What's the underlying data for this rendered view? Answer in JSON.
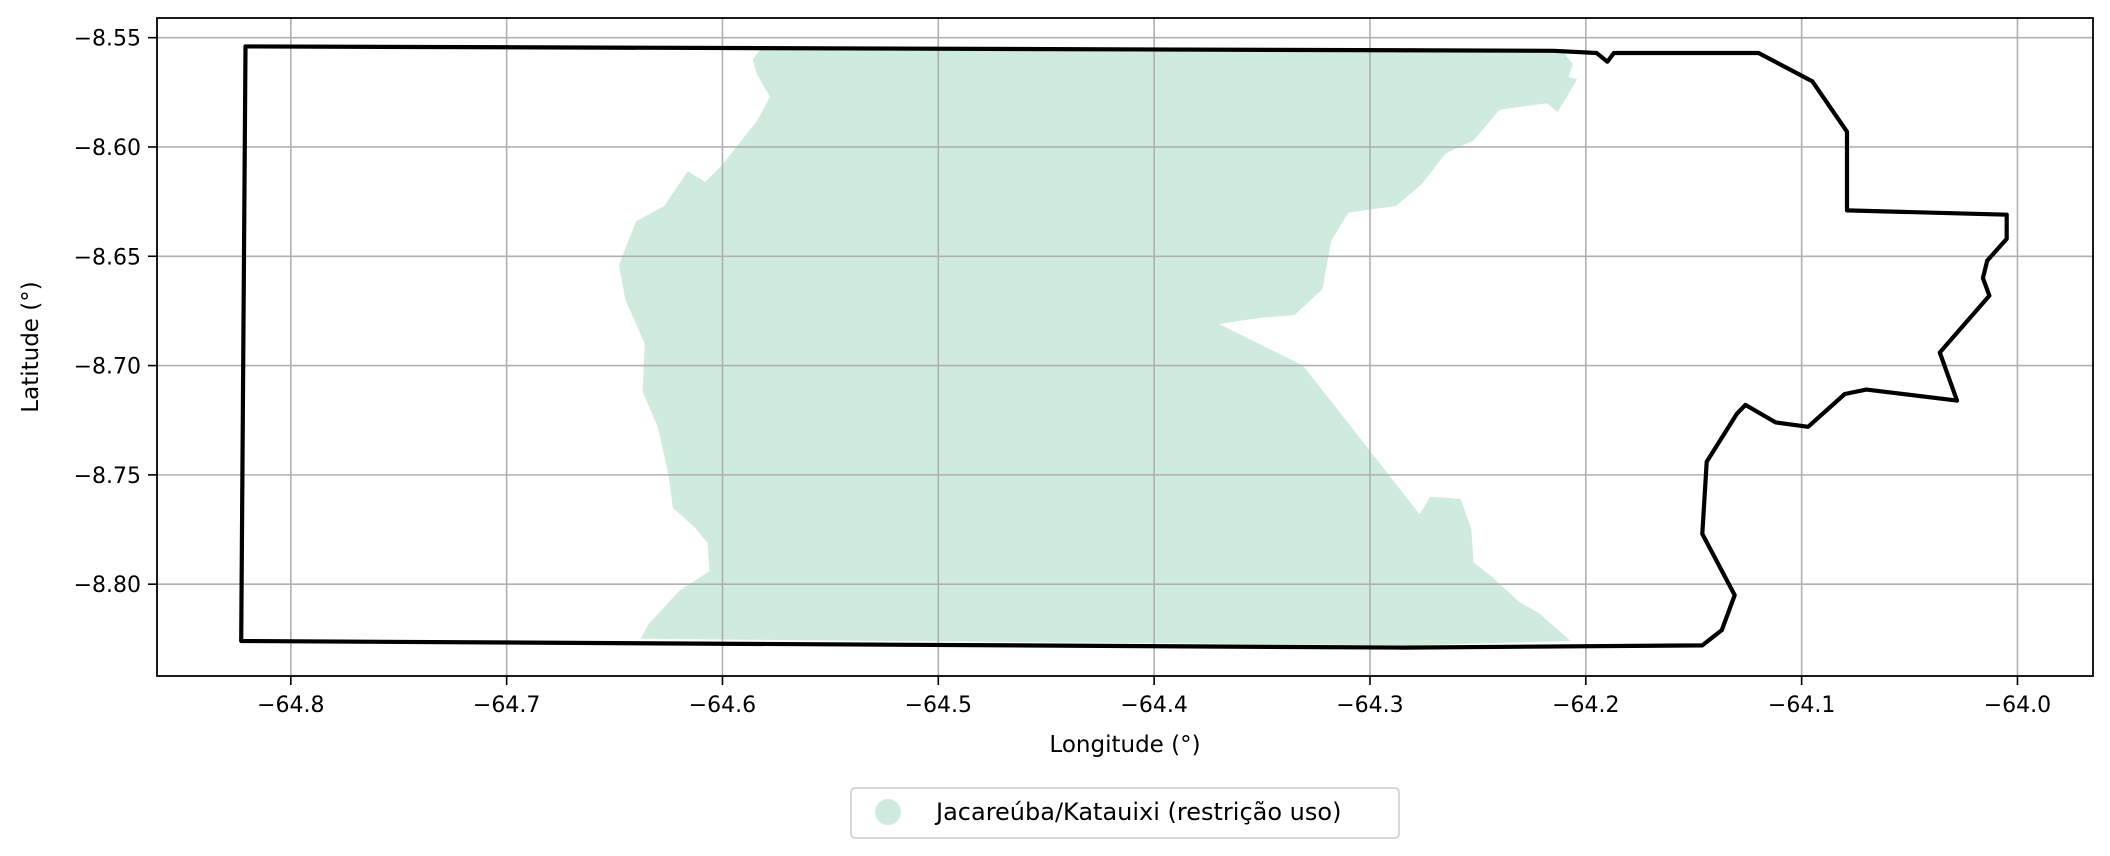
{
  "chart_data": {
    "type": "map",
    "xlabel": "Longitude (°)",
    "ylabel": "Latitude (°)",
    "xlim": [
      -64.862,
      -63.965
    ],
    "ylim": [
      -8.842,
      -8.541
    ],
    "grid": true,
    "legend_placement": "bottom-center",
    "x_ticks": [
      {
        "value": -64.8,
        "label": "−64.8"
      },
      {
        "value": -64.7,
        "label": "−64.7"
      },
      {
        "value": -64.6,
        "label": "−64.6"
      },
      {
        "value": -64.5,
        "label": "−64.5"
      },
      {
        "value": -64.4,
        "label": "−64.4"
      },
      {
        "value": -64.3,
        "label": "−64.3"
      },
      {
        "value": -64.2,
        "label": "−64.2"
      },
      {
        "value": -64.1,
        "label": "−64.1"
      },
      {
        "value": -64.0,
        "label": "−64.0"
      }
    ],
    "y_ticks": [
      {
        "value": -8.55,
        "label": "−8.55"
      },
      {
        "value": -8.6,
        "label": "−8.60"
      },
      {
        "value": -8.65,
        "label": "−8.65"
      },
      {
        "value": -8.7,
        "label": "−8.70"
      },
      {
        "value": -8.75,
        "label": "−8.75"
      },
      {
        "value": -8.8,
        "label": "−8.80"
      }
    ],
    "legend": [
      {
        "label": "Jacareúba/Katauixi (restrição uso)",
        "color": "#cfebde",
        "marker": "circle"
      }
    ],
    "boundary": {
      "color": "#000000",
      "coordinates": [
        [
          -64.821,
          -8.554
        ],
        [
          -64.215,
          -8.556
        ],
        [
          -64.195,
          -8.557
        ],
        [
          -64.19,
          -8.561
        ],
        [
          -64.187,
          -8.557
        ],
        [
          -64.12,
          -8.557
        ],
        [
          -64.095,
          -8.57
        ],
        [
          -64.079,
          -8.593
        ],
        [
          -64.079,
          -8.629
        ],
        [
          -64.005,
          -8.631
        ],
        [
          -64.005,
          -8.642
        ],
        [
          -64.014,
          -8.652
        ],
        [
          -64.016,
          -8.66
        ],
        [
          -64.013,
          -8.668
        ],
        [
          -64.036,
          -8.694
        ],
        [
          -64.028,
          -8.716
        ],
        [
          -64.07,
          -8.711
        ],
        [
          -64.08,
          -8.713
        ],
        [
          -64.097,
          -8.728
        ],
        [
          -64.112,
          -8.726
        ],
        [
          -64.126,
          -8.718
        ],
        [
          -64.13,
          -8.722
        ],
        [
          -64.144,
          -8.744
        ],
        [
          -64.146,
          -8.777
        ],
        [
          -64.131,
          -8.805
        ],
        [
          -64.137,
          -8.821
        ],
        [
          -64.146,
          -8.828
        ],
        [
          -64.285,
          -8.829
        ],
        [
          -64.823,
          -8.826
        ],
        [
          -64.821,
          -8.554
        ]
      ]
    },
    "area": {
      "name": "Jacareúba/Katauixi (restrição uso)",
      "color": "#cfebde",
      "coordinates": [
        [
          -64.582,
          -8.555
        ],
        [
          -64.211,
          -8.556
        ],
        [
          -64.206,
          -8.562
        ],
        [
          -64.208,
          -8.568
        ],
        [
          -64.204,
          -8.569
        ],
        [
          -64.213,
          -8.584
        ],
        [
          -64.218,
          -8.58
        ],
        [
          -64.24,
          -8.583
        ],
        [
          -64.252,
          -8.597
        ],
        [
          -64.265,
          -8.603
        ],
        [
          -64.276,
          -8.617
        ],
        [
          -64.288,
          -8.627
        ],
        [
          -64.31,
          -8.63
        ],
        [
          -64.318,
          -8.643
        ],
        [
          -64.322,
          -8.665
        ],
        [
          -64.335,
          -8.677
        ],
        [
          -64.35,
          -8.678
        ],
        [
          -64.37,
          -8.681
        ],
        [
          -64.331,
          -8.7
        ],
        [
          -64.277,
          -8.768
        ],
        [
          -64.272,
          -8.76
        ],
        [
          -64.258,
          -8.761
        ],
        [
          -64.253,
          -8.775
        ],
        [
          -64.252,
          -8.79
        ],
        [
          -64.243,
          -8.797
        ],
        [
          -64.231,
          -8.808
        ],
        [
          -64.222,
          -8.813
        ],
        [
          -64.207,
          -8.826
        ],
        [
          -64.282,
          -8.828
        ],
        [
          -64.638,
          -8.825
        ],
        [
          -64.634,
          -8.818
        ],
        [
          -64.62,
          -8.803
        ],
        [
          -64.606,
          -8.794
        ],
        [
          -64.607,
          -8.781
        ],
        [
          -64.613,
          -8.774
        ],
        [
          -64.623,
          -8.765
        ],
        [
          -64.625,
          -8.75
        ],
        [
          -64.63,
          -8.728
        ],
        [
          -64.637,
          -8.712
        ],
        [
          -64.636,
          -8.69
        ],
        [
          -64.645,
          -8.67
        ],
        [
          -64.648,
          -8.654
        ],
        [
          -64.64,
          -8.634
        ],
        [
          -64.627,
          -8.627
        ],
        [
          -64.616,
          -8.611
        ],
        [
          -64.608,
          -8.616
        ],
        [
          -64.6,
          -8.608
        ],
        [
          -64.584,
          -8.588
        ],
        [
          -64.578,
          -8.577
        ],
        [
          -64.584,
          -8.567
        ],
        [
          -64.586,
          -8.56
        ],
        [
          -64.582,
          -8.555
        ]
      ]
    }
  }
}
